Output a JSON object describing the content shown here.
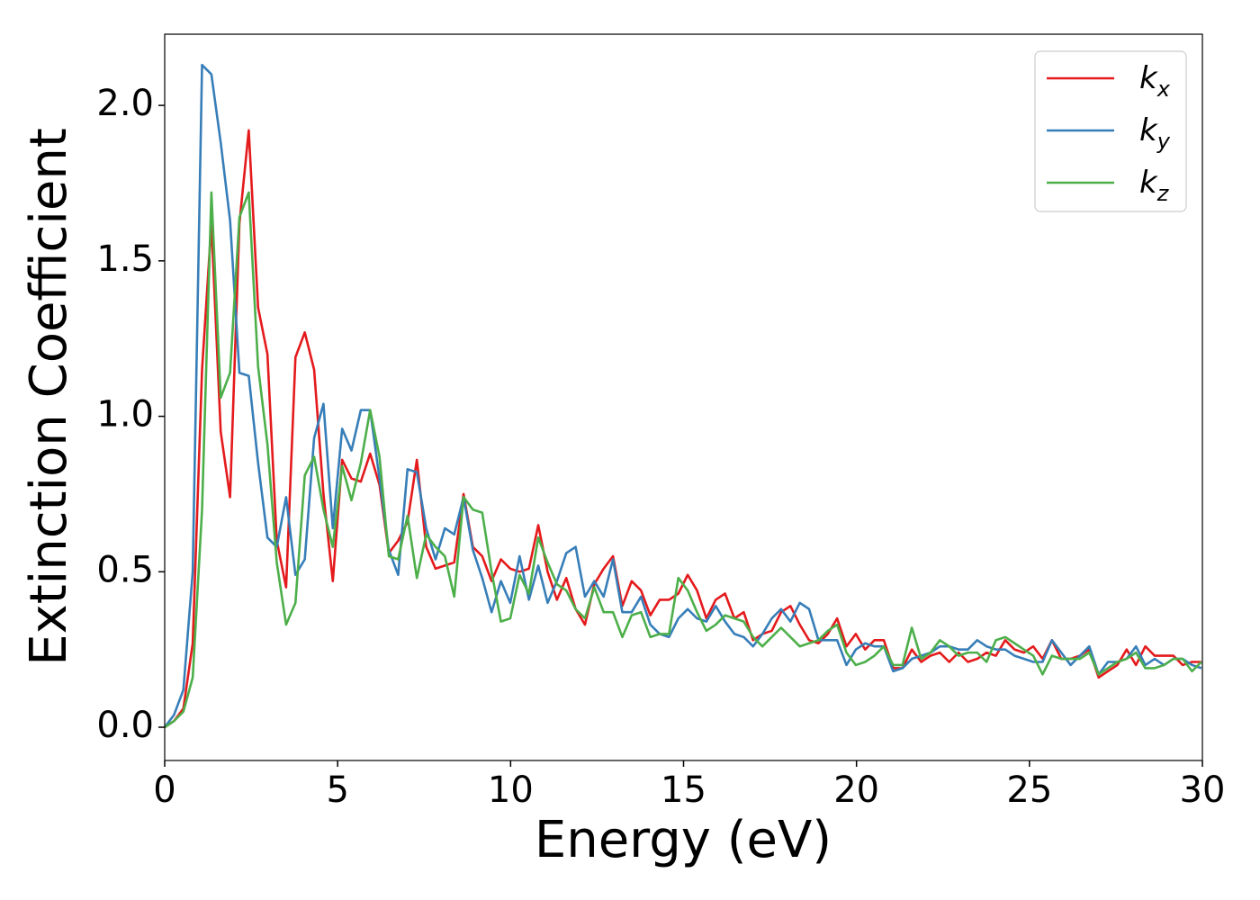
{
  "chart_data": {
    "type": "line",
    "x_label": "Energy (eV)",
    "y_label": "Extinction Coefficient",
    "x": [
      0,
      0.27,
      0.54,
      0.81,
      1.08,
      1.35,
      1.62,
      1.89,
      2.16,
      2.43,
      2.7,
      2.97,
      3.24,
      3.51,
      3.78,
      4.05,
      4.32,
      4.59,
      4.86,
      5.13,
      5.4,
      5.67,
      5.94,
      6.21,
      6.48,
      6.75,
      7.02,
      7.29,
      7.56,
      7.83,
      8.1,
      8.37,
      8.64,
      8.91,
      9.18,
      9.45,
      9.72,
      9.99,
      10.26,
      10.53,
      10.8,
      11.07,
      11.34,
      11.61,
      11.88,
      12.15,
      12.42,
      12.69,
      12.96,
      13.23,
      13.5,
      13.77,
      14.04,
      14.31,
      14.58,
      14.85,
      15.12,
      15.39,
      15.66,
      15.93,
      16.2,
      16.47,
      16.74,
      17.01,
      17.28,
      17.55,
      17.82,
      18.09,
      18.36,
      18.63,
      18.9,
      19.17,
      19.44,
      19.71,
      19.98,
      20.25,
      20.52,
      20.79,
      21.06,
      21.33,
      21.6,
      21.87,
      22.14,
      22.41,
      22.68,
      22.95,
      23.22,
      23.49,
      23.76,
      24.03,
      24.3,
      24.57,
      24.84,
      25.11,
      25.38,
      25.65,
      25.92,
      26.19,
      26.46,
      26.73,
      27,
      27.27,
      27.54,
      27.81,
      28.08,
      28.35,
      28.62,
      28.89,
      29.16,
      29.43,
      29.7,
      29.97
    ],
    "series": [
      {
        "name": "kx",
        "color": "#e41a1c",
        "values": [
          0,
          0.02,
          0.06,
          0.27,
          1.15,
          1.62,
          0.95,
          0.74,
          1.62,
          1.92,
          1.35,
          1.2,
          0.6,
          0.45,
          1.19,
          1.27,
          1.15,
          0.75,
          0.47,
          0.86,
          0.8,
          0.79,
          0.88,
          0.78,
          0.56,
          0.6,
          0.66,
          0.86,
          0.58,
          0.51,
          0.52,
          0.53,
          0.75,
          0.58,
          0.55,
          0.47,
          0.54,
          0.51,
          0.5,
          0.51,
          0.65,
          0.5,
          0.41,
          0.48,
          0.38,
          0.33,
          0.46,
          0.51,
          0.55,
          0.39,
          0.47,
          0.44,
          0.36,
          0.41,
          0.41,
          0.43,
          0.49,
          0.44,
          0.35,
          0.41,
          0.43,
          0.35,
          0.37,
          0.28,
          0.3,
          0.31,
          0.37,
          0.39,
          0.33,
          0.28,
          0.27,
          0.3,
          0.35,
          0.26,
          0.3,
          0.25,
          0.28,
          0.28,
          0.19,
          0.19,
          0.25,
          0.21,
          0.23,
          0.24,
          0.21,
          0.24,
          0.21,
          0.22,
          0.24,
          0.23,
          0.28,
          0.25,
          0.24,
          0.26,
          0.22,
          0.28,
          0.22,
          0.22,
          0.23,
          0.25,
          0.16,
          0.18,
          0.2,
          0.25,
          0.2,
          0.26,
          0.23,
          0.23,
          0.23,
          0.2,
          0.21,
          0.21
        ]
      },
      {
        "name": "ky",
        "color": "#377eb8",
        "values": [
          0,
          0.04,
          0.12,
          0.5,
          2.13,
          2.1,
          1.88,
          1.63,
          1.14,
          1.13,
          0.85,
          0.61,
          0.58,
          0.74,
          0.49,
          0.54,
          0.93,
          1.04,
          0.64,
          0.96,
          0.89,
          1.02,
          1.02,
          0.8,
          0.57,
          0.49,
          0.83,
          0.82,
          0.64,
          0.54,
          0.64,
          0.62,
          0.74,
          0.57,
          0.48,
          0.37,
          0.47,
          0.4,
          0.55,
          0.41,
          0.52,
          0.4,
          0.47,
          0.56,
          0.58,
          0.42,
          0.47,
          0.42,
          0.54,
          0.37,
          0.37,
          0.42,
          0.33,
          0.3,
          0.29,
          0.35,
          0.38,
          0.35,
          0.34,
          0.39,
          0.34,
          0.3,
          0.29,
          0.26,
          0.3,
          0.35,
          0.38,
          0.34,
          0.4,
          0.38,
          0.28,
          0.28,
          0.28,
          0.2,
          0.25,
          0.27,
          0.26,
          0.26,
          0.18,
          0.19,
          0.22,
          0.23,
          0.24,
          0.26,
          0.26,
          0.25,
          0.25,
          0.28,
          0.26,
          0.25,
          0.25,
          0.23,
          0.22,
          0.21,
          0.21,
          0.28,
          0.24,
          0.2,
          0.23,
          0.26,
          0.17,
          0.21,
          0.21,
          0.22,
          0.26,
          0.2,
          0.22,
          0.2,
          0.22,
          0.22,
          0.2,
          0.19
        ]
      },
      {
        "name": "kz",
        "color": "#4daf4a",
        "values": [
          0,
          0.02,
          0.05,
          0.16,
          0.7,
          1.72,
          1.06,
          1.14,
          1.64,
          1.72,
          1.16,
          0.91,
          0.53,
          0.33,
          0.4,
          0.81,
          0.87,
          0.7,
          0.58,
          0.84,
          0.73,
          0.85,
          1.02,
          0.87,
          0.55,
          0.54,
          0.68,
          0.48,
          0.62,
          0.58,
          0.55,
          0.42,
          0.74,
          0.7,
          0.69,
          0.5,
          0.34,
          0.35,
          0.49,
          0.43,
          0.61,
          0.53,
          0.46,
          0.44,
          0.38,
          0.35,
          0.45,
          0.37,
          0.37,
          0.29,
          0.36,
          0.37,
          0.29,
          0.3,
          0.3,
          0.48,
          0.44,
          0.37,
          0.31,
          0.33,
          0.36,
          0.35,
          0.34,
          0.29,
          0.26,
          0.29,
          0.32,
          0.29,
          0.26,
          0.27,
          0.28,
          0.31,
          0.33,
          0.24,
          0.2,
          0.21,
          0.23,
          0.26,
          0.2,
          0.2,
          0.32,
          0.22,
          0.24,
          0.28,
          0.26,
          0.23,
          0.24,
          0.24,
          0.21,
          0.28,
          0.29,
          0.27,
          0.25,
          0.23,
          0.17,
          0.23,
          0.22,
          0.22,
          0.22,
          0.24,
          0.17,
          0.19,
          0.21,
          0.22,
          0.24,
          0.19,
          0.19,
          0.2,
          0.22,
          0.22,
          0.18,
          0.21
        ]
      }
    ],
    "xlim": [
      0,
      30
    ],
    "ylim": [
      -0.107,
      2.229
    ],
    "xticks": [
      0,
      5,
      10,
      15,
      20,
      25,
      30
    ],
    "yticks": [
      {
        "value": 0,
        "label": "0.0"
      },
      {
        "value": 0.5,
        "label": "0.5"
      },
      {
        "value": 1,
        "label": "1.0"
      },
      {
        "value": 1.5,
        "label": "1.5"
      },
      {
        "value": 2,
        "label": "2.0"
      }
    ],
    "legend": "upper right",
    "grid": false
  }
}
